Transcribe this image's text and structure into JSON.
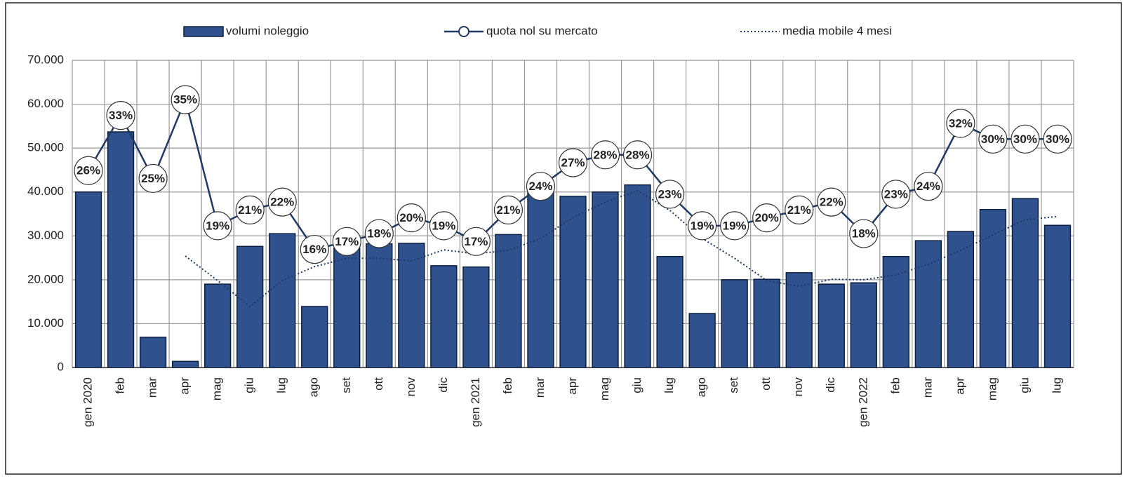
{
  "chart_data": {
    "type": "bar",
    "categories": [
      "gen 2020",
      "feb",
      "mar",
      "apr",
      "mag",
      "giu",
      "lug",
      "ago",
      "set",
      "ott",
      "nov",
      "dic",
      "gen 2021",
      "feb",
      "mar",
      "apr",
      "mag",
      "giu",
      "lug",
      "ago",
      "set",
      "ott",
      "nov",
      "dic",
      "gen 2022",
      "feb",
      "mar",
      "apr",
      "mag",
      "giu",
      "lug"
    ],
    "series": [
      {
        "name": "volumi noleggio",
        "type": "bar",
        "color": "#2f528f",
        "values": [
          40000,
          53700,
          6900,
          1400,
          19000,
          27600,
          30500,
          13900,
          27200,
          28200,
          28300,
          23200,
          22900,
          30300,
          40500,
          39000,
          40000,
          41600,
          25300,
          12300,
          20000,
          20100,
          21600,
          19000,
          19300,
          25300,
          28900,
          31000,
          36000,
          38500,
          32400
        ]
      },
      {
        "name": "quota nol su mercato",
        "type": "line",
        "axis": "y2",
        "color": "#1f3864",
        "values": [
          26,
          33,
          25,
          35,
          19,
          21,
          22,
          16,
          17,
          18,
          20,
          19,
          17,
          21,
          24,
          27,
          28,
          28,
          23,
          19,
          19,
          20,
          21,
          22,
          18,
          23,
          24,
          32,
          30,
          30,
          30
        ],
        "value_labels": [
          "26%",
          "33%",
          "25%",
          "35%",
          "19%",
          "21%",
          "22%",
          "16%",
          "17%",
          "18%",
          "20%",
          "19%",
          "17%",
          "21%",
          "24%",
          "27%",
          "28%",
          "28%",
          "23%",
          "19%",
          "19%",
          "20%",
          "21%",
          "22%",
          "18%",
          "23%",
          "24%",
          "32%",
          "30%",
          "30%",
          "30%"
        ]
      },
      {
        "name": "media mobile 4 mesi",
        "type": "dotted",
        "color": "#1f3864",
        "values": [
          null,
          null,
          null,
          25400,
          19800,
          13900,
          19800,
          23000,
          24900,
          24900,
          24300,
          26800,
          25900,
          26700,
          29400,
          34200,
          37700,
          40300,
          35800,
          29400,
          24900,
          19800,
          18500,
          20100,
          20000,
          21100,
          23500,
          26700,
          30200,
          33700,
          34400
        ]
      }
    ],
    "ylim": [
      0,
      70000
    ],
    "yticks": [
      0,
      {
        "value": 10000,
        "label": "10.000"
      },
      {
        "value": 20000,
        "label": "20.000"
      },
      {
        "value": 30000,
        "label": "30.000"
      },
      {
        "value": 40000,
        "label": "40.000"
      },
      {
        "value": 50000,
        "label": "50.000"
      },
      {
        "value": 60000,
        "label": "60.000"
      },
      {
        "value": 70000,
        "label": "70.000"
      }
    ],
    "y2lim": [
      1,
      40
    ],
    "grid": true,
    "legend": "top"
  }
}
